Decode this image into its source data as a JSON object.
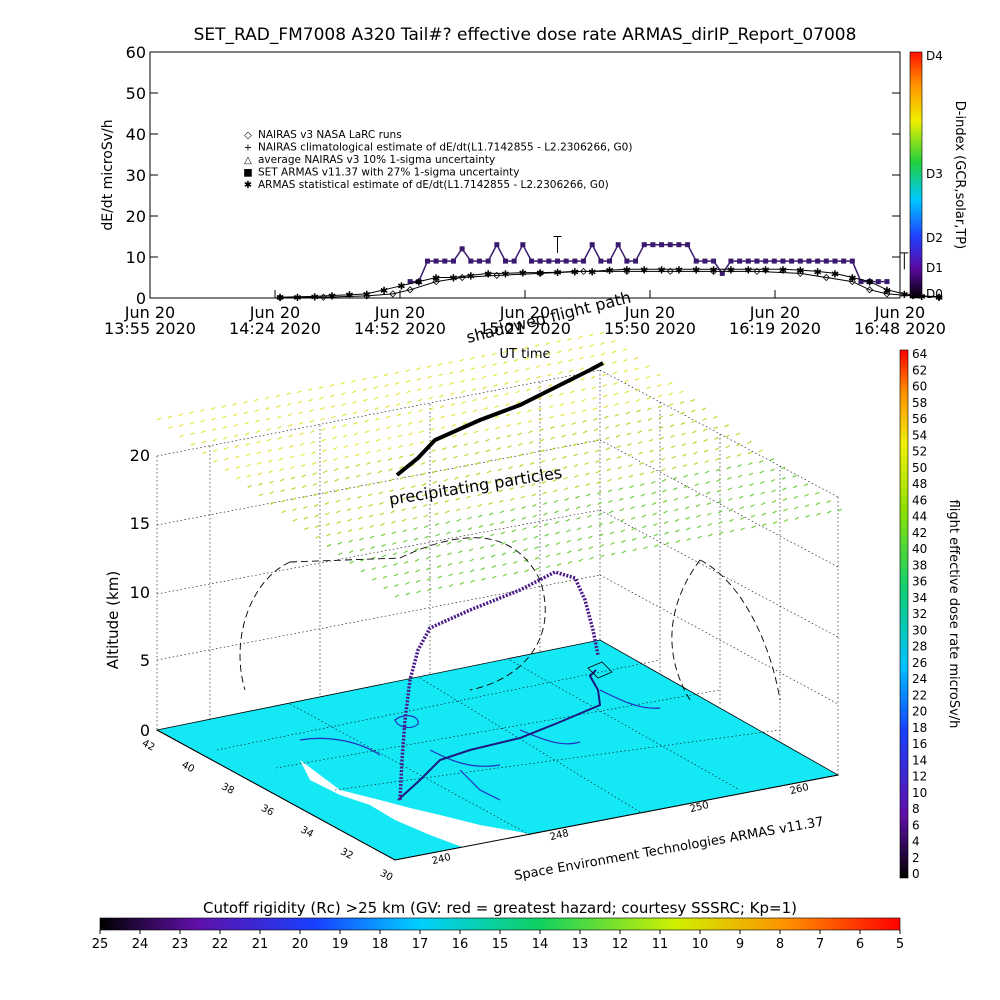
{
  "chart_data": [
    {
      "type": "scatter",
      "title": "SET_RAD_FM7008  A320 Tail#? effective dose rate ARMAS_dirIP_Report_07008",
      "ylabel": "dE/dt microSv/h",
      "xlabel": "UT time",
      "ylim": [
        0,
        60
      ],
      "yticks": [
        0,
        10,
        20,
        30,
        40,
        50,
        60
      ],
      "x_date_ticks": [
        "Jun 20",
        "Jun 20",
        "Jun 20",
        "Jun 20",
        "Jun 20",
        "Jun 20",
        "Jun 20"
      ],
      "x_time_ticks": [
        "13:55 2020",
        "14:24 2020",
        "14:52 2020",
        "15:21 2020",
        "15:50 2020",
        "16:19 2020",
        "16:48 2020"
      ],
      "legend_position": "upper-left",
      "legend": [
        {
          "symbol": "◇",
          "label": "NAIRAS v3 NASA LaRC runs"
        },
        {
          "symbol": "+",
          "label": "NAIRAS climatological estimate of dE/dt(L1.7142855 - L2.2306266, G0)"
        },
        {
          "symbol": "△",
          "label": "average NAIRAS v3 10% 1-sigma uncertainty"
        },
        {
          "symbol": "■",
          "label": "SET ARMAS v11.37 with 27% 1-sigma uncertainty"
        },
        {
          "symbol": "✱",
          "label": "ARMAS statistical estimate of dE/dt(L1.7142855 - L2.2306266, G0)"
        }
      ],
      "overlay_labels": [
        "shadowed flight path"
      ],
      "series": [
        {
          "name": "SET ARMAS v11.37 with 27% 1-sigma uncertainty",
          "color": "#3a1a6e",
          "x_minutes": [
            60,
            62,
            64,
            66,
            68,
            70,
            72,
            74,
            76,
            78,
            80,
            82,
            84,
            86,
            88,
            90,
            92,
            94,
            96,
            98,
            100,
            102,
            104,
            106,
            108,
            110,
            112,
            114,
            116,
            118,
            120,
            122,
            124,
            126,
            128,
            130,
            132,
            134,
            136,
            138,
            140,
            142,
            144,
            146,
            148,
            150,
            152,
            154,
            156,
            158,
            160,
            162,
            164,
            166,
            168,
            170
          ],
          "values": [
            4,
            4,
            9,
            9,
            9,
            9,
            12,
            9,
            9,
            9,
            13,
            9,
            9,
            13,
            9,
            9,
            9,
            9,
            9,
            9,
            9,
            13,
            9,
            9,
            13,
            9,
            9,
            13,
            13,
            13,
            13,
            13,
            13,
            9,
            9,
            9,
            6,
            9,
            9,
            9,
            9,
            9,
            9,
            9,
            9,
            9,
            9,
            9,
            9,
            9,
            9,
            9,
            4,
            4,
            4,
            4
          ]
        },
        {
          "name": "ARMAS statistical estimate of dE/dt(L1.7142855 - L2.2306266, G0)",
          "color": "#000000",
          "x_minutes": [
            30,
            34,
            38,
            42,
            46,
            50,
            54,
            58,
            62,
            66,
            70,
            74,
            78,
            82,
            86,
            90,
            94,
            98,
            102,
            106,
            110,
            114,
            118,
            122,
            126,
            130,
            134,
            138,
            142,
            146,
            150,
            154,
            158,
            162,
            166,
            170,
            174,
            178,
            182
          ],
          "values": [
            0.2,
            0.3,
            0.4,
            0.6,
            0.8,
            1,
            2,
            3,
            4,
            5,
            5,
            5.5,
            6,
            6,
            6.2,
            6.2,
            6.3,
            6.5,
            6.5,
            6.8,
            7,
            7,
            7,
            7,
            7,
            7,
            7,
            7,
            7,
            7,
            6.8,
            6.5,
            6,
            5,
            4,
            2,
            1,
            0.5,
            0.3
          ]
        },
        {
          "name": "NAIRAS v3 NASA LaRC runs",
          "color": "#000000",
          "x_minutes": [
            30,
            40,
            50,
            56,
            60,
            66,
            72,
            80,
            90,
            100,
            110,
            120,
            130,
            140,
            150,
            156,
            162,
            166,
            170,
            176,
            182
          ],
          "values": [
            0.1,
            0.2,
            0.5,
            1,
            2,
            4,
            5,
            5.5,
            6,
            6.5,
            6.5,
            6.5,
            6.5,
            6.5,
            6,
            5,
            4,
            2,
            1,
            0.5,
            0.2
          ]
        }
      ]
    },
    {
      "type": "scatter",
      "ylabel": "Altitude (km)",
      "zticks": [
        0,
        5,
        10,
        15,
        20
      ],
      "lat_ticks": [
        42,
        40,
        38,
        36,
        34,
        32,
        30
      ],
      "lon_ticks": [
        240,
        248,
        250,
        260
      ],
      "overlay_labels": [
        "precipitating particles"
      ],
      "credit": "Space Environment Technologies ARMAS v11.37"
    }
  ],
  "colorbars": {
    "dindex": {
      "label": "D-index (GCR,solar,TP)",
      "ticks": [
        "D4",
        "D3",
        "D2",
        "D1",
        "D0"
      ]
    },
    "dose": {
      "label": "flight effective dose rate microSv/h",
      "ticks": [
        64,
        62,
        60,
        58,
        56,
        54,
        52,
        50,
        48,
        46,
        44,
        42,
        40,
        38,
        36,
        34,
        32,
        30,
        28,
        26,
        24,
        22,
        20,
        18,
        16,
        14,
        12,
        10,
        8,
        6,
        4,
        2,
        0
      ]
    },
    "cutoff": {
      "label": "Cutoff rigidity (Rc) >25 km (GV: red = greatest hazard; courtesy SSSRC; Kp=1)",
      "ticks": [
        25,
        24,
        23,
        22,
        21,
        20,
        19,
        18,
        17,
        16,
        15,
        14,
        13,
        12,
        11,
        10,
        9,
        8,
        7,
        6,
        5
      ]
    }
  }
}
